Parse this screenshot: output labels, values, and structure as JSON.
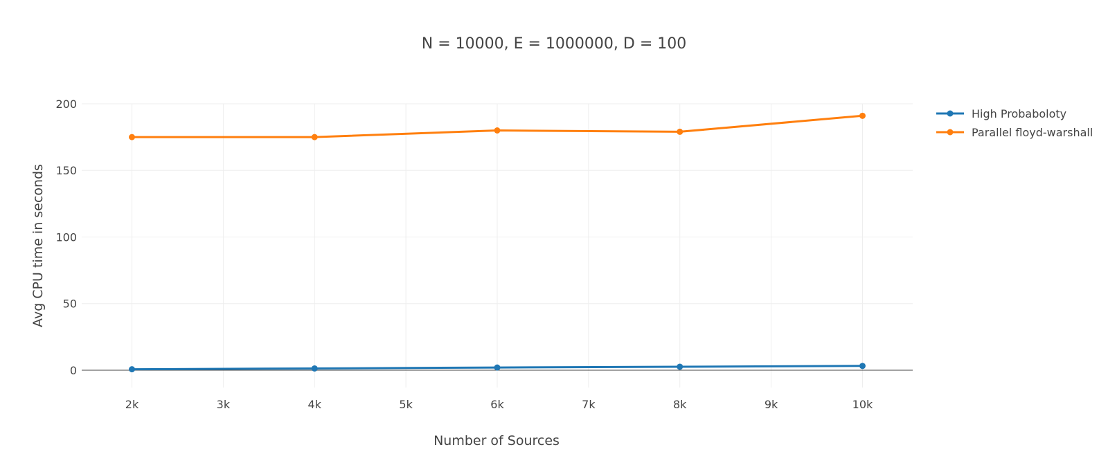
{
  "chart_data": {
    "type": "line",
    "title": "N = 10000, E = 1000000, D = 100",
    "xlabel": "Number of Sources",
    "ylabel": "Avg CPU time in seconds",
    "x": [
      2000,
      4000,
      6000,
      8000,
      10000
    ],
    "xlim": [
      1450,
      10550
    ],
    "ylim": [
      -13,
      200
    ],
    "x_ticks": [
      2000,
      3000,
      4000,
      5000,
      6000,
      7000,
      8000,
      9000,
      10000
    ],
    "x_tick_labels": [
      "2k",
      "3k",
      "4k",
      "5k",
      "6k",
      "7k",
      "8k",
      "9k",
      "10k"
    ],
    "y_ticks": [
      0,
      50,
      100,
      150,
      200
    ],
    "y_tick_labels": [
      "0",
      "50",
      "100",
      "150",
      "200"
    ],
    "grid": true,
    "legend_position": "top-right",
    "series": [
      {
        "name": "High Probaboloty",
        "color": "#1f77b4",
        "values": [
          0.7,
          1.3,
          2.0,
          2.6,
          3.2
        ]
      },
      {
        "name": "Parallel floyd-warshall",
        "color": "#ff7f0e",
        "values": [
          175,
          175,
          180,
          179,
          191
        ]
      }
    ]
  }
}
